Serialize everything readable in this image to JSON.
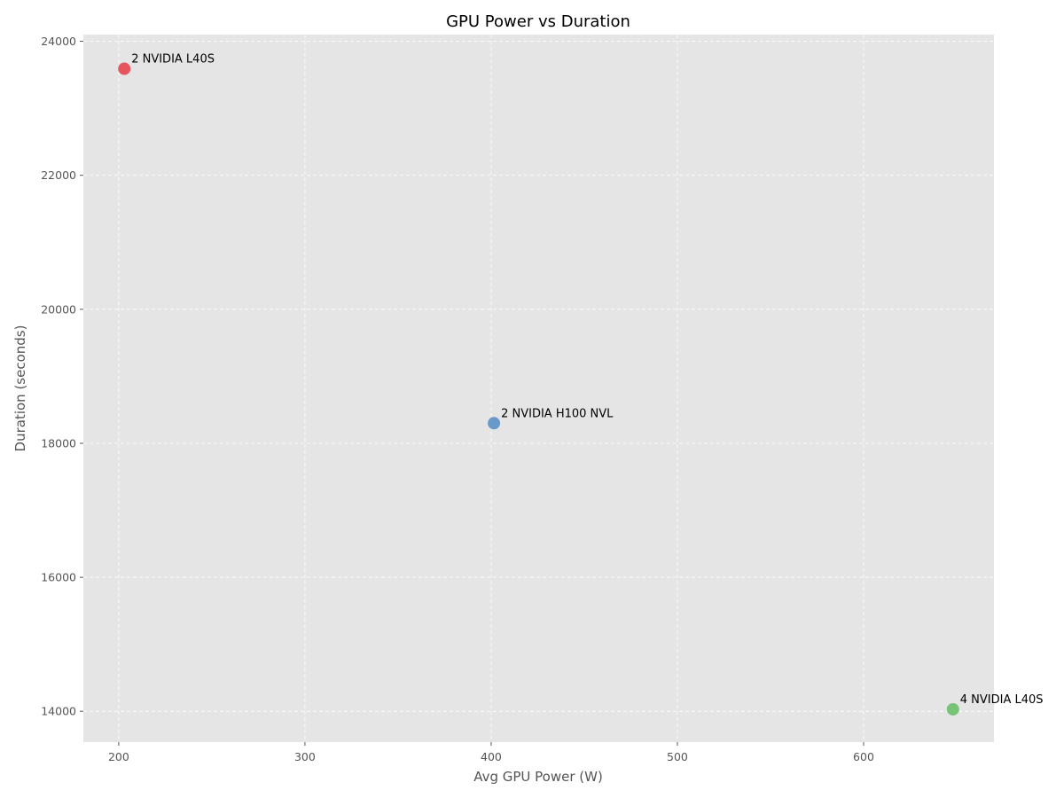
{
  "chart_data": {
    "type": "scatter",
    "title": "GPU Power vs Duration",
    "xlabel": "Avg GPU Power (W)",
    "ylabel": "Duration (seconds)",
    "xlim": [
      181,
      670
    ],
    "ylim": [
      13540,
      24100
    ],
    "xticks": [
      200,
      300,
      400,
      500,
      600
    ],
    "yticks": [
      14000,
      16000,
      18000,
      20000,
      22000,
      24000
    ],
    "grid": true,
    "points": [
      {
        "label": "2 NVIDIA L40S",
        "x": 203,
        "y": 23590,
        "color": "#e5454f"
      },
      {
        "label": "2 NVIDIA H100 NVL",
        "x": 401.5,
        "y": 18300,
        "color": "#5a90c4"
      },
      {
        "label": "4 NVIDIA L40S",
        "x": 648,
        "y": 14030,
        "color": "#6cbf6a"
      }
    ]
  },
  "colors": {
    "plot_background": "#e5e5e5",
    "grid": "#ffffff"
  }
}
